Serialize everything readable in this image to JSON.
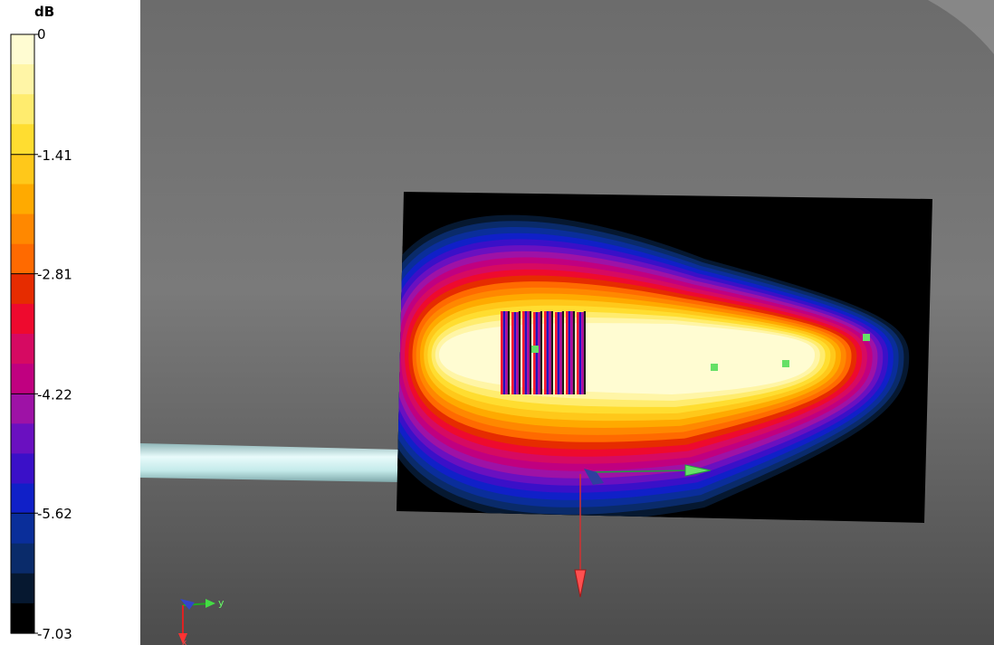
{
  "legend": {
    "unit": "dB",
    "ticks": [
      {
        "label": "0",
        "value": 0
      },
      {
        "label": "-1.41",
        "value": -1.41
      },
      {
        "label": "-2.81",
        "value": -2.81
      },
      {
        "label": "-4.22",
        "value": -4.22
      },
      {
        "label": "-5.62",
        "value": -5.62
      },
      {
        "label": "-7.03",
        "value": -7.03
      }
    ],
    "colors": [
      "#fffcd2",
      "#fff5a6",
      "#ffec6e",
      "#ffdd30",
      "#ffc81a",
      "#ffaa00",
      "#ff8800",
      "#ff6a00",
      "#e62c00",
      "#ee0a2e",
      "#d60a62",
      "#c00080",
      "#9e12a6",
      "#6a10c0",
      "#3a10c8",
      "#1020c8",
      "#0a2e9a",
      "#0a2b6a",
      "#061830",
      "#000000"
    ]
  },
  "scene": {
    "background_top": "#6f6f6f",
    "background_bottom": "#4e4e4e",
    "waveguide_color": "#bfe8ea",
    "axis_labels": {
      "y": "y",
      "x": "x"
    },
    "marker_color": "#66e066"
  }
}
